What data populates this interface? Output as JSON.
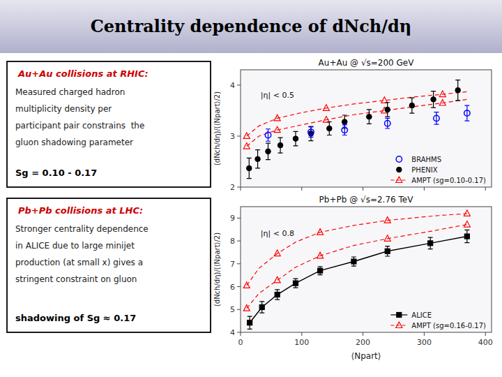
{
  "chart_data": [
    {
      "type": "scatter",
      "title": "Au+Au @ √s=200 GeV",
      "subtitle": "|η| < 0.5",
      "annotations": [
        "Centrality dependence of dNch/dη",
        "Au+Au collisions at RHIC:",
        "Measured charged hadron",
        "multiplicity density per",
        "participant pair constrains  the",
        "gluon shadowing parameter",
        "Sg = 0.10 - 0.17"
      ],
      "ylabel": "(dNch/dη)/(⟨Npart⟩/2)",
      "xlim": [
        0,
        410
      ],
      "xticks": [
        0,
        100,
        200,
        300,
        400
      ],
      "ylim": [
        2.0,
        4.3
      ],
      "yticks": [
        2,
        3,
        4
      ],
      "tick_labels": "y",
      "grid": false,
      "legend": "lower right",
      "series": [
        {
          "name": "BRAHMS",
          "color": "blue",
          "marker": "open-circle",
          "line_style": "none",
          "x": [
            45,
            115,
            170,
            240,
            320,
            370
          ],
          "values": [
            3.02,
            3.08,
            3.12,
            3.25,
            3.35,
            3.45
          ],
          "errors": [
            0.12,
            0.1,
            0.1,
            0.1,
            0.12,
            0.15
          ]
        },
        {
          "name": "PHENIX",
          "color": "black",
          "marker": "circle",
          "line_style": "none",
          "x": [
            14,
            28,
            45,
            65,
            90,
            115,
            145,
            170,
            210,
            240,
            280,
            315,
            355
          ],
          "values": [
            2.37,
            2.55,
            2.7,
            2.82,
            2.95,
            3.05,
            3.15,
            3.28,
            3.38,
            3.52,
            3.6,
            3.72,
            3.9
          ],
          "errors": [
            0.2,
            0.18,
            0.16,
            0.15,
            0.14,
            0.14,
            0.13,
            0.13,
            0.14,
            0.14,
            0.15,
            0.16,
            0.2
          ]
        },
        {
          "name": "AMPT (sg=0.10-0.17)",
          "color": "red",
          "marker": "open-triangle",
          "line_style": "dashed",
          "x": [
            10,
            30,
            60,
            100,
            140,
            185,
            235,
            285,
            330,
            370
          ],
          "values": [
            2.8,
            3.0,
            3.12,
            3.22,
            3.32,
            3.42,
            3.5,
            3.58,
            3.65,
            3.72
          ]
        },
        {
          "color": "red",
          "marker": "open-triangle",
          "line_style": "dashed",
          "x": [
            10,
            30,
            60,
            100,
            140,
            185,
            235,
            285,
            330,
            370
          ],
          "values": [
            3.0,
            3.2,
            3.35,
            3.46,
            3.55,
            3.63,
            3.7,
            3.77,
            3.82,
            3.87
          ]
        }
      ]
    },
    {
      "type": "scatter",
      "title": "Pb+Pb @ √s=2.76 TeV",
      "subtitle": "|η| < 0.8",
      "annotations": [
        "Pb+Pb collisions at LHC:",
        "Stronger centrality dependence",
        "in ALICE due to large minijet",
        "production (at small x) gives a",
        "stringent constraint on gluon",
        "shadowing of Sg ≈ 0.17"
      ],
      "xlabel": "⟨Npart⟩",
      "ylabel": "(dNch/dη)/(⟨Npart⟩/2)",
      "xlim": [
        0,
        410
      ],
      "xticks": [
        0,
        100,
        200,
        300,
        400
      ],
      "ylim": [
        4.0,
        9.5
      ],
      "yticks": [
        4,
        5,
        6,
        7,
        8,
        9
      ],
      "tick_labels": true,
      "grid": false,
      "legend": "lower right",
      "series": [
        {
          "name": "ALICE",
          "color": "black",
          "marker": "square",
          "line_style": "solid",
          "x": [
            15,
            35,
            60,
            90,
            130,
            185,
            240,
            310,
            370
          ],
          "values": [
            4.42,
            5.1,
            5.65,
            6.15,
            6.7,
            7.1,
            7.55,
            7.9,
            8.2
          ],
          "errors": [
            0.28,
            0.25,
            0.22,
            0.2,
            0.18,
            0.2,
            0.22,
            0.25,
            0.28
          ]
        },
        {
          "name": "AMPT (sg=0.16-0.17)",
          "color": "red",
          "marker": "open-triangle",
          "line_style": "dashed",
          "x": [
            10,
            30,
            60,
            90,
            130,
            185,
            240,
            310,
            370
          ],
          "values": [
            5.05,
            5.7,
            6.28,
            6.85,
            7.35,
            7.8,
            8.1,
            8.42,
            8.72
          ]
        },
        {
          "color": "red",
          "marker": "open-triangle",
          "line_style": "dashed",
          "x": [
            10,
            30,
            60,
            90,
            130,
            185,
            240,
            310,
            370
          ],
          "values": [
            6.05,
            6.8,
            7.45,
            7.95,
            8.38,
            8.68,
            8.9,
            9.08,
            9.2
          ]
        }
      ]
    }
  ]
}
